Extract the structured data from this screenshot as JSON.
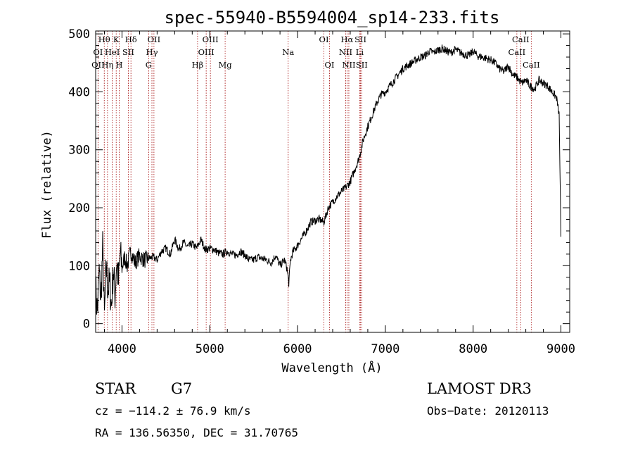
{
  "chart_data": {
    "type": "line",
    "title": "spec-55940-B5594004_sp14-233.fits",
    "xlabel": "Wavelength (Å)",
    "ylabel": "Flux (relative)",
    "xlim": [
      3700,
      9100
    ],
    "ylim": [
      -15,
      505
    ],
    "xticks": [
      4000,
      5000,
      6000,
      7000,
      8000,
      9000
    ],
    "yticks": [
      0,
      100,
      200,
      300,
      400,
      500
    ],
    "series": [
      {
        "name": "flux",
        "x": [
          3700,
          3720,
          3740,
          3760,
          3780,
          3800,
          3820,
          3840,
          3860,
          3880,
          3900,
          3920,
          3940,
          3960,
          3980,
          4000,
          4030,
          4060,
          4100,
          4150,
          4200,
          4250,
          4300,
          4350,
          4400,
          4450,
          4500,
          4550,
          4600,
          4650,
          4700,
          4750,
          4800,
          4850,
          4900,
          4950,
          5000,
          5050,
          5100,
          5150,
          5200,
          5250,
          5300,
          5350,
          5400,
          5450,
          5500,
          5550,
          5600,
          5650,
          5700,
          5750,
          5800,
          5850,
          5880,
          5900,
          5920,
          5950,
          6000,
          6050,
          6100,
          6150,
          6200,
          6250,
          6300,
          6350,
          6400,
          6450,
          6500,
          6550,
          6600,
          6650,
          6700,
          6750,
          6800,
          6850,
          6900,
          6950,
          7000,
          7050,
          7100,
          7150,
          7200,
          7250,
          7300,
          7350,
          7400,
          7450,
          7500,
          7550,
          7600,
          7650,
          7700,
          7750,
          7800,
          7850,
          7900,
          7950,
          8000,
          8050,
          8100,
          8150,
          8200,
          8250,
          8300,
          8350,
          8400,
          8450,
          8500,
          8550,
          8600,
          8650,
          8700,
          8750,
          8800,
          8850,
          8900,
          8950,
          8980,
          9000
        ],
        "y": [
          60,
          20,
          90,
          40,
          130,
          10,
          100,
          60,
          70,
          30,
          95,
          50,
          110,
          70,
          120,
          95,
          115,
          100,
          125,
          105,
          118,
          110,
          112,
          115,
          110,
          125,
          130,
          120,
          145,
          128,
          140,
          132,
          138,
          130,
          145,
          128,
          130,
          128,
          122,
          120,
          125,
          120,
          118,
          125,
          118,
          110,
          110,
          115,
          112,
          110,
          105,
          118,
          100,
          110,
          95,
          70,
          110,
          125,
          135,
          148,
          160,
          175,
          178,
          180,
          175,
          200,
          210,
          220,
          228,
          235,
          245,
          265,
          285,
          318,
          340,
          360,
          380,
          395,
          400,
          410,
          420,
          430,
          440,
          445,
          450,
          455,
          460,
          462,
          470,
          468,
          472,
          475,
          470,
          468,
          473,
          468,
          465,
          462,
          470,
          462,
          460,
          458,
          455,
          450,
          440,
          435,
          445,
          430,
          425,
          415,
          420,
          410,
          405,
          420,
          415,
          410,
          400,
          390,
          360,
          150
        ]
      }
    ],
    "emission_lines": [
      {
        "label": "Hθ",
        "wl": 3798,
        "row": 0
      },
      {
        "label": "K",
        "wl": 3934,
        "row": 0
      },
      {
        "label": "Hδ",
        "wl": 4102,
        "row": 0
      },
      {
        "label": "OII",
        "wl": 4364,
        "row": 0
      },
      {
        "label": "OIII",
        "wl": 5007,
        "row": 0
      },
      {
        "label": "OI",
        "wl": 6300,
        "row": 0
      },
      {
        "label": "Hα",
        "wl": 6563,
        "row": 0
      },
      {
        "label": "SII",
        "wl": 6717,
        "row": 0
      },
      {
        "label": "CaII",
        "wl": 8542,
        "row": 0
      },
      {
        "label": "OI",
        "wl": 3727,
        "row": 1
      },
      {
        "label": "HeI",
        "wl": 3889,
        "row": 1
      },
      {
        "label": "SII",
        "wl": 4072,
        "row": 1
      },
      {
        "label": "Hγ",
        "wl": 4341,
        "row": 1
      },
      {
        "label": "OIII",
        "wl": 4959,
        "row": 1
      },
      {
        "label": "Na",
        "wl": 5893,
        "row": 1
      },
      {
        "label": "NII",
        "wl": 6548,
        "row": 1
      },
      {
        "label": "Li",
        "wl": 6708,
        "row": 1
      },
      {
        "label": "CaII",
        "wl": 8498,
        "row": 1
      },
      {
        "label": "OII",
        "wl": 3727,
        "row": 2
      },
      {
        "label": "Hη",
        "wl": 3835,
        "row": 2
      },
      {
        "label": "H",
        "wl": 3969,
        "row": 2
      },
      {
        "label": "G",
        "wl": 4304,
        "row": 2
      },
      {
        "label": "Hβ",
        "wl": 4861,
        "row": 2
      },
      {
        "label": "Mg",
        "wl": 5175,
        "row": 2
      },
      {
        "label": "OI",
        "wl": 6364,
        "row": 2
      },
      {
        "label": "NII",
        "wl": 6584,
        "row": 2
      },
      {
        "label": "SII",
        "wl": 6731,
        "row": 2
      },
      {
        "label": "CaII",
        "wl": 8662,
        "row": 2
      }
    ]
  },
  "info": {
    "class": "STAR",
    "subclass": "G7",
    "survey": "LAMOST DR3",
    "cz": "cz = −114.2 ± 76.9 km/s",
    "obs_date": "Obs−Date: 20120113",
    "radec": "RA = 136.56350, DEC =  31.70765"
  }
}
